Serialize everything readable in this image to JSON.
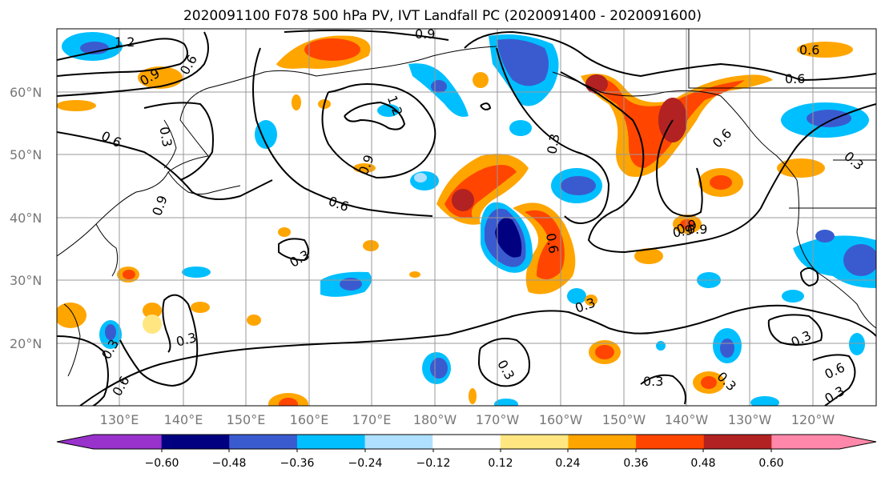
{
  "title": "2020091100 F078 500 hPa PV, IVT Landfall PC (2020091400 - 2020091600)",
  "lat_labels": [
    "60°N",
    "50°N",
    "40°N",
    "30°N",
    "20°N"
  ],
  "lon_labels": [
    "130°E",
    "140°E",
    "150°E",
    "160°E",
    "170°E",
    "180°W",
    "170°W",
    "160°W",
    "150°W",
    "140°W",
    "130°W",
    "120°W"
  ],
  "colorbar": {
    "ticks": [
      "−0.60",
      "−0.48",
      "−0.36",
      "−0.24",
      "−0.12",
      "0.12",
      "0.24",
      "0.36",
      "0.48",
      "0.60"
    ],
    "colors": [
      "#9932cc",
      "#000080",
      "#3a5bd0",
      "#00bfff",
      "#b0e0ff",
      "#ffffff",
      "#ffe680",
      "#ffa500",
      "#ff4500",
      "#b22222",
      "#ff88aa"
    ]
  },
  "contour_labels": [
    "1.2",
    "0.9",
    "0.6",
    "0.9",
    "0.6",
    "0.3",
    "1.2",
    "0.9",
    "0.6",
    "0.3",
    "0.9",
    "0.6",
    "0.3",
    "0.6",
    "0.6",
    "0.3",
    "0.9",
    "0.6",
    "0.3",
    "0.3",
    "0.3",
    "0.3",
    "0.3",
    "0.3",
    "0.6",
    "0.3",
    "0.3",
    "0.6",
    "0.9",
    "0.9"
  ]
}
